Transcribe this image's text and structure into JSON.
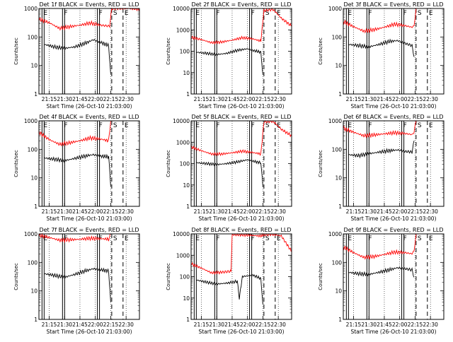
{
  "chart_data": [
    {
      "type": "line",
      "title": "Det 1f BLACK = Events, RED = LLD",
      "xlabel": "Start Time (26-Oct-10 21:03:00)",
      "ylabel": "Counts/sec",
      "yscale": "log",
      "ylim": [
        1,
        1000
      ],
      "yticks": [
        "1",
        "10",
        "100",
        "1000"
      ],
      "xlim": [
        "21:05",
        "22:43"
      ],
      "xticks": [
        "21:15",
        "21:30",
        "21:45",
        "22:00",
        "22:15",
        "22:30"
      ],
      "markers": [
        {
          "time": "21:08",
          "label": "E",
          "style": "solid"
        },
        {
          "time": "21:28",
          "label": "F",
          "style": "solid"
        },
        {
          "time": "22:02",
          "label": "F",
          "style": "solid"
        },
        {
          "time": "22:16",
          "label": "S",
          "style": "dashed"
        },
        {
          "time": "22:27",
          "label": "E",
          "style": "dashed"
        }
      ],
      "series": [
        {
          "color": "#ff0000",
          "x": [
            "21:05",
            "21:15",
            "21:25",
            "21:35",
            "21:45",
            "21:55",
            "22:05",
            "22:14",
            "22:16",
            "22:30",
            "22:43"
          ],
          "y": [
            420,
            320,
            200,
            230,
            260,
            310,
            260,
            240,
            1000,
            1000,
            1000
          ]
        },
        {
          "color": "#000000",
          "x": [
            "21:10",
            "21:20",
            "21:30",
            "21:40",
            "21:50",
            "21:58",
            "22:05",
            "22:13",
            "22:15"
          ],
          "y": [
            55,
            45,
            40,
            45,
            60,
            80,
            65,
            50,
            5
          ]
        }
      ]
    },
    {
      "type": "line",
      "title": "Det 2f BLACK = Events, RED = LLD",
      "xlabel": "Start Time (26-Oct-10 21:03:00)",
      "ylabel": "Counts/sec",
      "yscale": "log",
      "ylim": [
        1,
        10000
      ],
      "yticks": [
        "1",
        "10",
        "100",
        "1000",
        "10000"
      ],
      "xlim": [
        "21:05",
        "22:43"
      ],
      "xticks": [
        "21:15",
        "21:30",
        "21:45",
        "22:00",
        "22:15",
        "22:30"
      ],
      "markers": [
        {
          "time": "21:08",
          "label": "E",
          "style": "solid"
        },
        {
          "time": "21:28",
          "label": "F",
          "style": "solid"
        },
        {
          "time": "22:02",
          "label": "F",
          "style": "solid"
        },
        {
          "time": "22:16",
          "label": "S",
          "style": "dashed"
        },
        {
          "time": "22:27",
          "label": "E",
          "style": "dashed"
        }
      ],
      "series": [
        {
          "color": "#ff0000",
          "x": [
            "21:05",
            "21:15",
            "21:25",
            "21:35",
            "21:45",
            "21:55",
            "22:05",
            "22:13",
            "22:16",
            "22:25",
            "22:33",
            "22:43"
          ],
          "y": [
            450,
            350,
            250,
            270,
            330,
            430,
            380,
            300,
            8000,
            9000,
            3500,
            1500
          ]
        },
        {
          "color": "#000000",
          "x": [
            "21:10",
            "21:20",
            "21:30",
            "21:40",
            "21:50",
            "22:00",
            "22:05",
            "22:13",
            "22:15"
          ],
          "y": [
            90,
            80,
            70,
            80,
            110,
            130,
            110,
            90,
            8
          ]
        }
      ]
    },
    {
      "type": "line",
      "title": "Det 3f BLACK = Events, RED = LLD",
      "xlabel": "Start Time (26-Oct-10 21:03:00)",
      "ylabel": "Counts/sec",
      "yscale": "log",
      "ylim": [
        1,
        1000
      ],
      "yticks": [
        "1",
        "10",
        "100",
        "1000"
      ],
      "xlim": [
        "21:05",
        "22:43"
      ],
      "xticks": [
        "21:15",
        "21:30",
        "21:45",
        "22:00",
        "22:15",
        "22:30"
      ],
      "markers": [
        {
          "time": "21:08",
          "label": "E",
          "style": "solid"
        },
        {
          "time": "21:28",
          "label": "F",
          "style": "solid"
        },
        {
          "time": "22:02",
          "label": "F",
          "style": "solid"
        },
        {
          "time": "22:16",
          "label": "S",
          "style": "dashed"
        },
        {
          "time": "22:27",
          "label": "E",
          "style": "dashed"
        }
      ],
      "series": [
        {
          "color": "#ff0000",
          "x": [
            "21:05",
            "21:15",
            "21:25",
            "21:35",
            "21:45",
            "21:55",
            "22:05",
            "22:12",
            "22:14",
            "22:16"
          ],
          "y": [
            350,
            230,
            160,
            180,
            220,
            280,
            250,
            220,
            240,
            1000
          ]
        },
        {
          "color": "#000000",
          "x": [
            "21:10",
            "21:20",
            "21:30",
            "21:40",
            "21:50",
            "21:58",
            "22:05",
            "22:12",
            "22:14"
          ],
          "y": [
            55,
            50,
            45,
            55,
            70,
            75,
            60,
            50,
            20
          ]
        }
      ]
    },
    {
      "type": "line",
      "title": "Det 4f BLACK = Events, RED = LLD",
      "xlabel": "Start Time (26-Oct-10 21:03:00)",
      "ylabel": "Counts/sec",
      "yscale": "log",
      "ylim": [
        1,
        1000
      ],
      "yticks": [
        "1",
        "10",
        "100",
        "1000"
      ],
      "xlim": [
        "21:05",
        "22:43"
      ],
      "xticks": [
        "21:15",
        "21:30",
        "21:45",
        "22:00",
        "22:15",
        "22:30"
      ],
      "markers": [
        {
          "time": "21:08",
          "label": "E",
          "style": "solid"
        },
        {
          "time": "21:28",
          "label": "F",
          "style": "solid"
        },
        {
          "time": "22:02",
          "label": "F",
          "style": "solid"
        },
        {
          "time": "22:16",
          "label": "S",
          "style": "dashed"
        },
        {
          "time": "22:27",
          "label": "E",
          "style": "dashed"
        }
      ],
      "series": [
        {
          "color": "#ff0000",
          "x": [
            "21:05",
            "21:15",
            "21:25",
            "21:35",
            "21:45",
            "21:55",
            "22:05",
            "22:13",
            "22:15"
          ],
          "y": [
            400,
            220,
            150,
            170,
            200,
            250,
            230,
            200,
            1000
          ]
        },
        {
          "color": "#000000",
          "x": [
            "21:10",
            "21:20",
            "21:30",
            "21:40",
            "21:50",
            "21:58",
            "22:05",
            "22:13",
            "22:15"
          ],
          "y": [
            50,
            45,
            40,
            48,
            58,
            65,
            58,
            55,
            5
          ]
        }
      ]
    },
    {
      "type": "line",
      "title": "Det 5f BLACK = Events, RED = LLD",
      "xlabel": "Start Time (26-Oct-10 21:03:00)",
      "ylabel": "Counts/sec",
      "yscale": "log",
      "ylim": [
        1,
        10000
      ],
      "yticks": [
        "1",
        "10",
        "100",
        "1000",
        "10000"
      ],
      "xlim": [
        "21:05",
        "22:43"
      ],
      "xticks": [
        "21:15",
        "21:30",
        "21:45",
        "22:00",
        "22:15",
        "22:30"
      ],
      "markers": [
        {
          "time": "21:08",
          "label": "E",
          "style": "solid"
        },
        {
          "time": "21:28",
          "label": "F",
          "style": "solid"
        },
        {
          "time": "22:02",
          "label": "F",
          "style": "solid"
        },
        {
          "time": "22:16",
          "label": "S",
          "style": "dashed"
        },
        {
          "time": "22:27",
          "label": "E",
          "style": "dashed"
        }
      ],
      "series": [
        {
          "color": "#ff0000",
          "x": [
            "21:05",
            "21:15",
            "21:25",
            "21:35",
            "21:45",
            "21:55",
            "22:05",
            "22:13",
            "22:16",
            "22:25",
            "22:33",
            "22:43"
          ],
          "y": [
            600,
            400,
            280,
            280,
            320,
            380,
            330,
            280,
            9000,
            9500,
            4000,
            2000
          ]
        },
        {
          "color": "#000000",
          "x": [
            "21:10",
            "21:20",
            "21:30",
            "21:40",
            "21:50",
            "22:00",
            "22:05",
            "22:13",
            "22:15"
          ],
          "y": [
            110,
            100,
            90,
            100,
            120,
            150,
            130,
            110,
            8
          ]
        }
      ]
    },
    {
      "type": "line",
      "title": "Det 6f BLACK = Events, RED = LLD",
      "xlabel": "Start Time (26-Oct-10 21:03:00)",
      "ylabel": "Counts/sec",
      "yscale": "log",
      "ylim": [
        1,
        1000
      ],
      "yticks": [
        "1",
        "10",
        "100",
        "1000"
      ],
      "xlim": [
        "21:05",
        "22:43"
      ],
      "xticks": [
        "21:15",
        "21:30",
        "21:45",
        "22:00",
        "22:15",
        "22:30"
      ],
      "markers": [
        {
          "time": "21:08",
          "label": "E",
          "style": "solid"
        },
        {
          "time": "21:28",
          "label": "F",
          "style": "solid"
        },
        {
          "time": "22:02",
          "label": "F",
          "style": "solid"
        },
        {
          "time": "22:16",
          "label": "S",
          "style": "dashed"
        },
        {
          "time": "22:27",
          "label": "E",
          "style": "dashed"
        }
      ],
      "series": [
        {
          "color": "#ff0000",
          "x": [
            "21:05",
            "21:15",
            "21:25",
            "21:35",
            "21:45",
            "21:55",
            "22:05",
            "22:12",
            "22:14",
            "22:16"
          ],
          "y": [
            550,
            400,
            300,
            320,
            350,
            380,
            360,
            330,
            400,
            1000
          ]
        },
        {
          "color": "#000000",
          "x": [
            "21:10",
            "21:20",
            "21:30",
            "21:40",
            "21:50",
            "21:58",
            "22:05",
            "22:12",
            "22:14"
          ],
          "y": [
            65,
            60,
            70,
            80,
            90,
            95,
            85,
            80,
            200
          ]
        }
      ]
    },
    {
      "type": "line",
      "title": "Det 7f BLACK = Events, RED = LLD",
      "xlabel": "Start Time (26-Oct-10 21:03:00)",
      "ylabel": "Counts/sec",
      "yscale": "log",
      "ylim": [
        1,
        1000
      ],
      "yticks": [
        "1",
        "10",
        "100",
        "1000"
      ],
      "xlim": [
        "21:05",
        "22:43"
      ],
      "xticks": [
        "21:15",
        "21:30",
        "21:45",
        "22:00",
        "22:15",
        "22:30"
      ],
      "markers": [
        {
          "time": "21:08",
          "label": "E",
          "style": "solid"
        },
        {
          "time": "21:28",
          "label": "F",
          "style": "solid"
        },
        {
          "time": "22:02",
          "label": "F",
          "style": "solid"
        },
        {
          "time": "22:16",
          "label": "S",
          "style": "dashed"
        },
        {
          "time": "22:27",
          "label": "E",
          "style": "dashed"
        }
      ],
      "series": [
        {
          "color": "#ff0000",
          "x": [
            "21:05",
            "21:15",
            "21:25",
            "21:35",
            "21:45",
            "21:55",
            "22:05",
            "22:13",
            "22:15"
          ],
          "y": [
            900,
            750,
            600,
            620,
            650,
            700,
            680,
            650,
            1000
          ]
        },
        {
          "color": "#000000",
          "x": [
            "21:10",
            "21:20",
            "21:30",
            "21:40",
            "21:50",
            "21:58",
            "22:05",
            "22:13",
            "22:15"
          ],
          "y": [
            40,
            35,
            30,
            38,
            50,
            60,
            55,
            50,
            4
          ]
        }
      ]
    },
    {
      "type": "line",
      "title": "Det 8f BLACK = Events, RED = LLD",
      "xlabel": "Start Time (26-Oct-10 21:03:00)",
      "ylabel": "Counts/sec",
      "yscale": "log",
      "ylim": [
        1,
        10000
      ],
      "yticks": [
        "1",
        "10",
        "100",
        "1000",
        "10000"
      ],
      "xlim": [
        "21:05",
        "22:43"
      ],
      "xticks": [
        "21:15",
        "21:30",
        "21:45",
        "22:00",
        "22:15",
        "22:30"
      ],
      "markers": [
        {
          "time": "21:08",
          "label": "E",
          "style": "solid"
        },
        {
          "time": "21:28",
          "label": "F",
          "style": "solid"
        },
        {
          "time": "22:02",
          "label": "F",
          "style": "solid"
        },
        {
          "time": "22:16",
          "label": "S",
          "style": "dashed"
        },
        {
          "time": "22:27",
          "label": "E",
          "style": "dashed"
        }
      ],
      "series": [
        {
          "color": "#ff0000",
          "x": [
            "21:05",
            "21:15",
            "21:25",
            "21:35",
            "21:44",
            "21:45",
            "21:55",
            "22:05",
            "22:13",
            "22:16",
            "22:25",
            "22:33",
            "22:43"
          ],
          "y": [
            400,
            250,
            150,
            160,
            180,
            9000,
            9000,
            8500,
            8000,
            9000,
            9500,
            8000,
            1500
          ]
        },
        {
          "color": "#000000",
          "x": [
            "21:10",
            "21:20",
            "21:30",
            "21:40",
            "21:50",
            "21:52",
            "21:55",
            "22:05",
            "22:13",
            "22:15"
          ],
          "y": [
            70,
            55,
            45,
            50,
            60,
            10,
            100,
            120,
            80,
            5
          ]
        }
      ]
    },
    {
      "type": "line",
      "title": "Det 9f BLACK = Events, RED = LLD",
      "xlabel": "Start Time (26-Oct-10 21:03:00)",
      "ylabel": "Counts/sec",
      "yscale": "log",
      "ylim": [
        1,
        1000
      ],
      "yticks": [
        "1",
        "10",
        "100",
        "1000"
      ],
      "xlim": [
        "21:05",
        "22:43"
      ],
      "xticks": [
        "21:15",
        "21:30",
        "21:45",
        "22:00",
        "22:15",
        "22:30"
      ],
      "markers": [
        {
          "time": "21:08",
          "label": "E",
          "style": "solid"
        },
        {
          "time": "21:28",
          "label": "F",
          "style": "solid"
        },
        {
          "time": "22:02",
          "label": "F",
          "style": "solid"
        },
        {
          "time": "22:16",
          "label": "S",
          "style": "dashed"
        },
        {
          "time": "22:27",
          "label": "E",
          "style": "dashed"
        }
      ],
      "series": [
        {
          "color": "#ff0000",
          "x": [
            "21:05",
            "21:15",
            "21:25",
            "21:35",
            "21:45",
            "21:55",
            "22:05",
            "22:12",
            "22:14",
            "22:16"
          ],
          "y": [
            350,
            220,
            150,
            160,
            190,
            230,
            220,
            200,
            250,
            1000
          ]
        },
        {
          "color": "#000000",
          "x": [
            "21:10",
            "21:20",
            "21:30",
            "21:40",
            "21:50",
            "21:58",
            "22:05",
            "22:12",
            "22:14"
          ],
          "y": [
            45,
            40,
            38,
            45,
            55,
            65,
            60,
            55,
            30
          ]
        }
      ]
    }
  ]
}
